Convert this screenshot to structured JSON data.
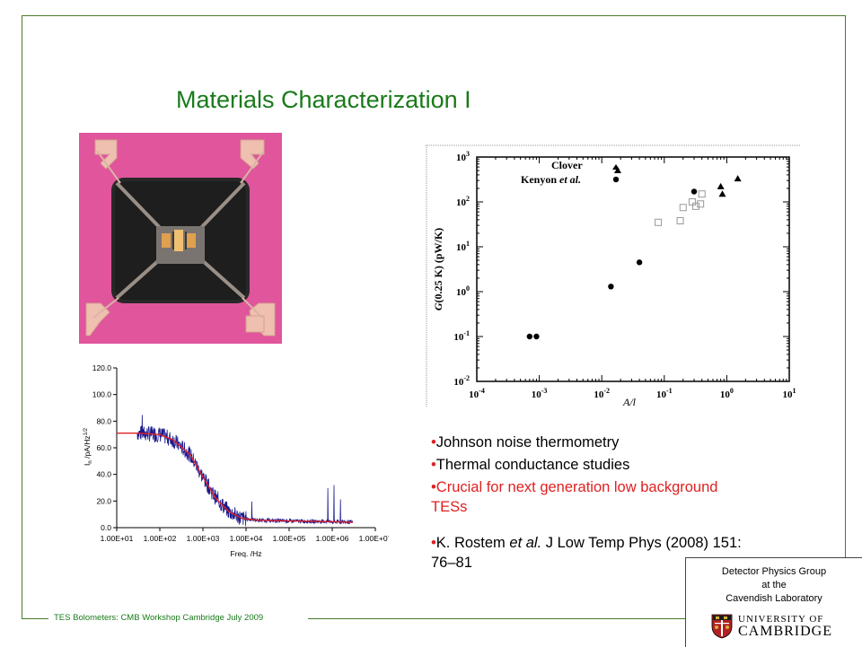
{
  "slide": {
    "title": "Materials Characterization I",
    "footer": "TES Bolometers: CMB Workshop Cambridge July 2009"
  },
  "bullets": [
    {
      "text": "Johnson noise thermometry",
      "color": "#000000"
    },
    {
      "text": "Thermal conductance studies",
      "color": "#000000"
    },
    {
      "text": "Crucial for next generation low background TESs",
      "color": "#e02020"
    }
  ],
  "reference": {
    "bullet": "•",
    "authors": "K. Rostem ",
    "etal": "et al.",
    "rest": " J Low Temp Phys (2008) 151: 76–81"
  },
  "affiliation": {
    "line1": "Detector Physics Group",
    "line2": "at  the",
    "line3": "Cavendish Laboratory",
    "uni_line1": "UNIVERSITY OF",
    "uni_line2": "CAMBRIDGE"
  },
  "chart_data": [
    {
      "type": "scatter",
      "title": "",
      "xlabel": "A/l",
      "ylabel": "G(0.25 K) (pW/K)",
      "xscale": "log",
      "yscale": "log",
      "xlim": [
        0.0001,
        10
      ],
      "ylim": [
        0.01,
        1000
      ],
      "xticks": [
        "10-4",
        "10-3",
        "10-2",
        "10-1",
        "100",
        "101"
      ],
      "yticks": [
        "10-2",
        "10-1",
        "100",
        "101",
        "102",
        "103"
      ],
      "legend": {
        "position": "top-left",
        "entries": [
          "Clover",
          "Kenyon et al."
        ]
      },
      "series": [
        {
          "name": "Clover",
          "marker": "triangle",
          "x": [
            0.018,
            0.8,
            0.85,
            1.5
          ],
          "y": [
            500,
            220,
            150,
            330
          ]
        },
        {
          "name": "Kenyon et al.",
          "marker": "circle",
          "x": [
            0.0007,
            0.0009,
            0.014,
            0.04,
            0.3
          ],
          "y": [
            0.1,
            0.1,
            1.3,
            4.5,
            170
          ]
        },
        {
          "name": "",
          "marker": "open-square",
          "x": [
            0.08,
            0.18,
            0.2,
            0.28,
            0.32,
            0.38,
            0.4
          ],
          "y": [
            35,
            38,
            75,
            100,
            80,
            90,
            150
          ]
        }
      ]
    },
    {
      "type": "line",
      "title": "",
      "xlabel": "Freq. /Hz",
      "ylabel": "In /pA/Hz1/2",
      "xscale": "log",
      "xlim": [
        10,
        10000000
      ],
      "ylim": [
        0,
        120
      ],
      "xticks": [
        "1.00E+01",
        "1.00E+02",
        "1.00E+03",
        "1.00E+04",
        "1.00E+05",
        "1.00E+06",
        "1.00E+07"
      ],
      "yticks": [
        "0.0",
        "20.0",
        "40.0",
        "60.0",
        "80.0",
        "100.0",
        "120.0"
      ],
      "series": [
        {
          "name": "",
          "x": [
            10,
            30,
            100,
            200,
            500,
            1000,
            2000,
            4000,
            8000,
            20000,
            100000,
            1000000,
            3000000
          ],
          "y": [
            71,
            71,
            70,
            66,
            55,
            38,
            22,
            12,
            7,
            5.5,
            5,
            4.5,
            4
          ]
        }
      ]
    }
  ],
  "colors": {
    "title": "#1a7a1a",
    "frame": "#4a7a2a",
    "bullet_marker": "#e02020",
    "highlight": "#e02020",
    "pink_background": "#e0559c",
    "noise_trace": "#1a1a8c",
    "fit_line": "#e0202a"
  }
}
